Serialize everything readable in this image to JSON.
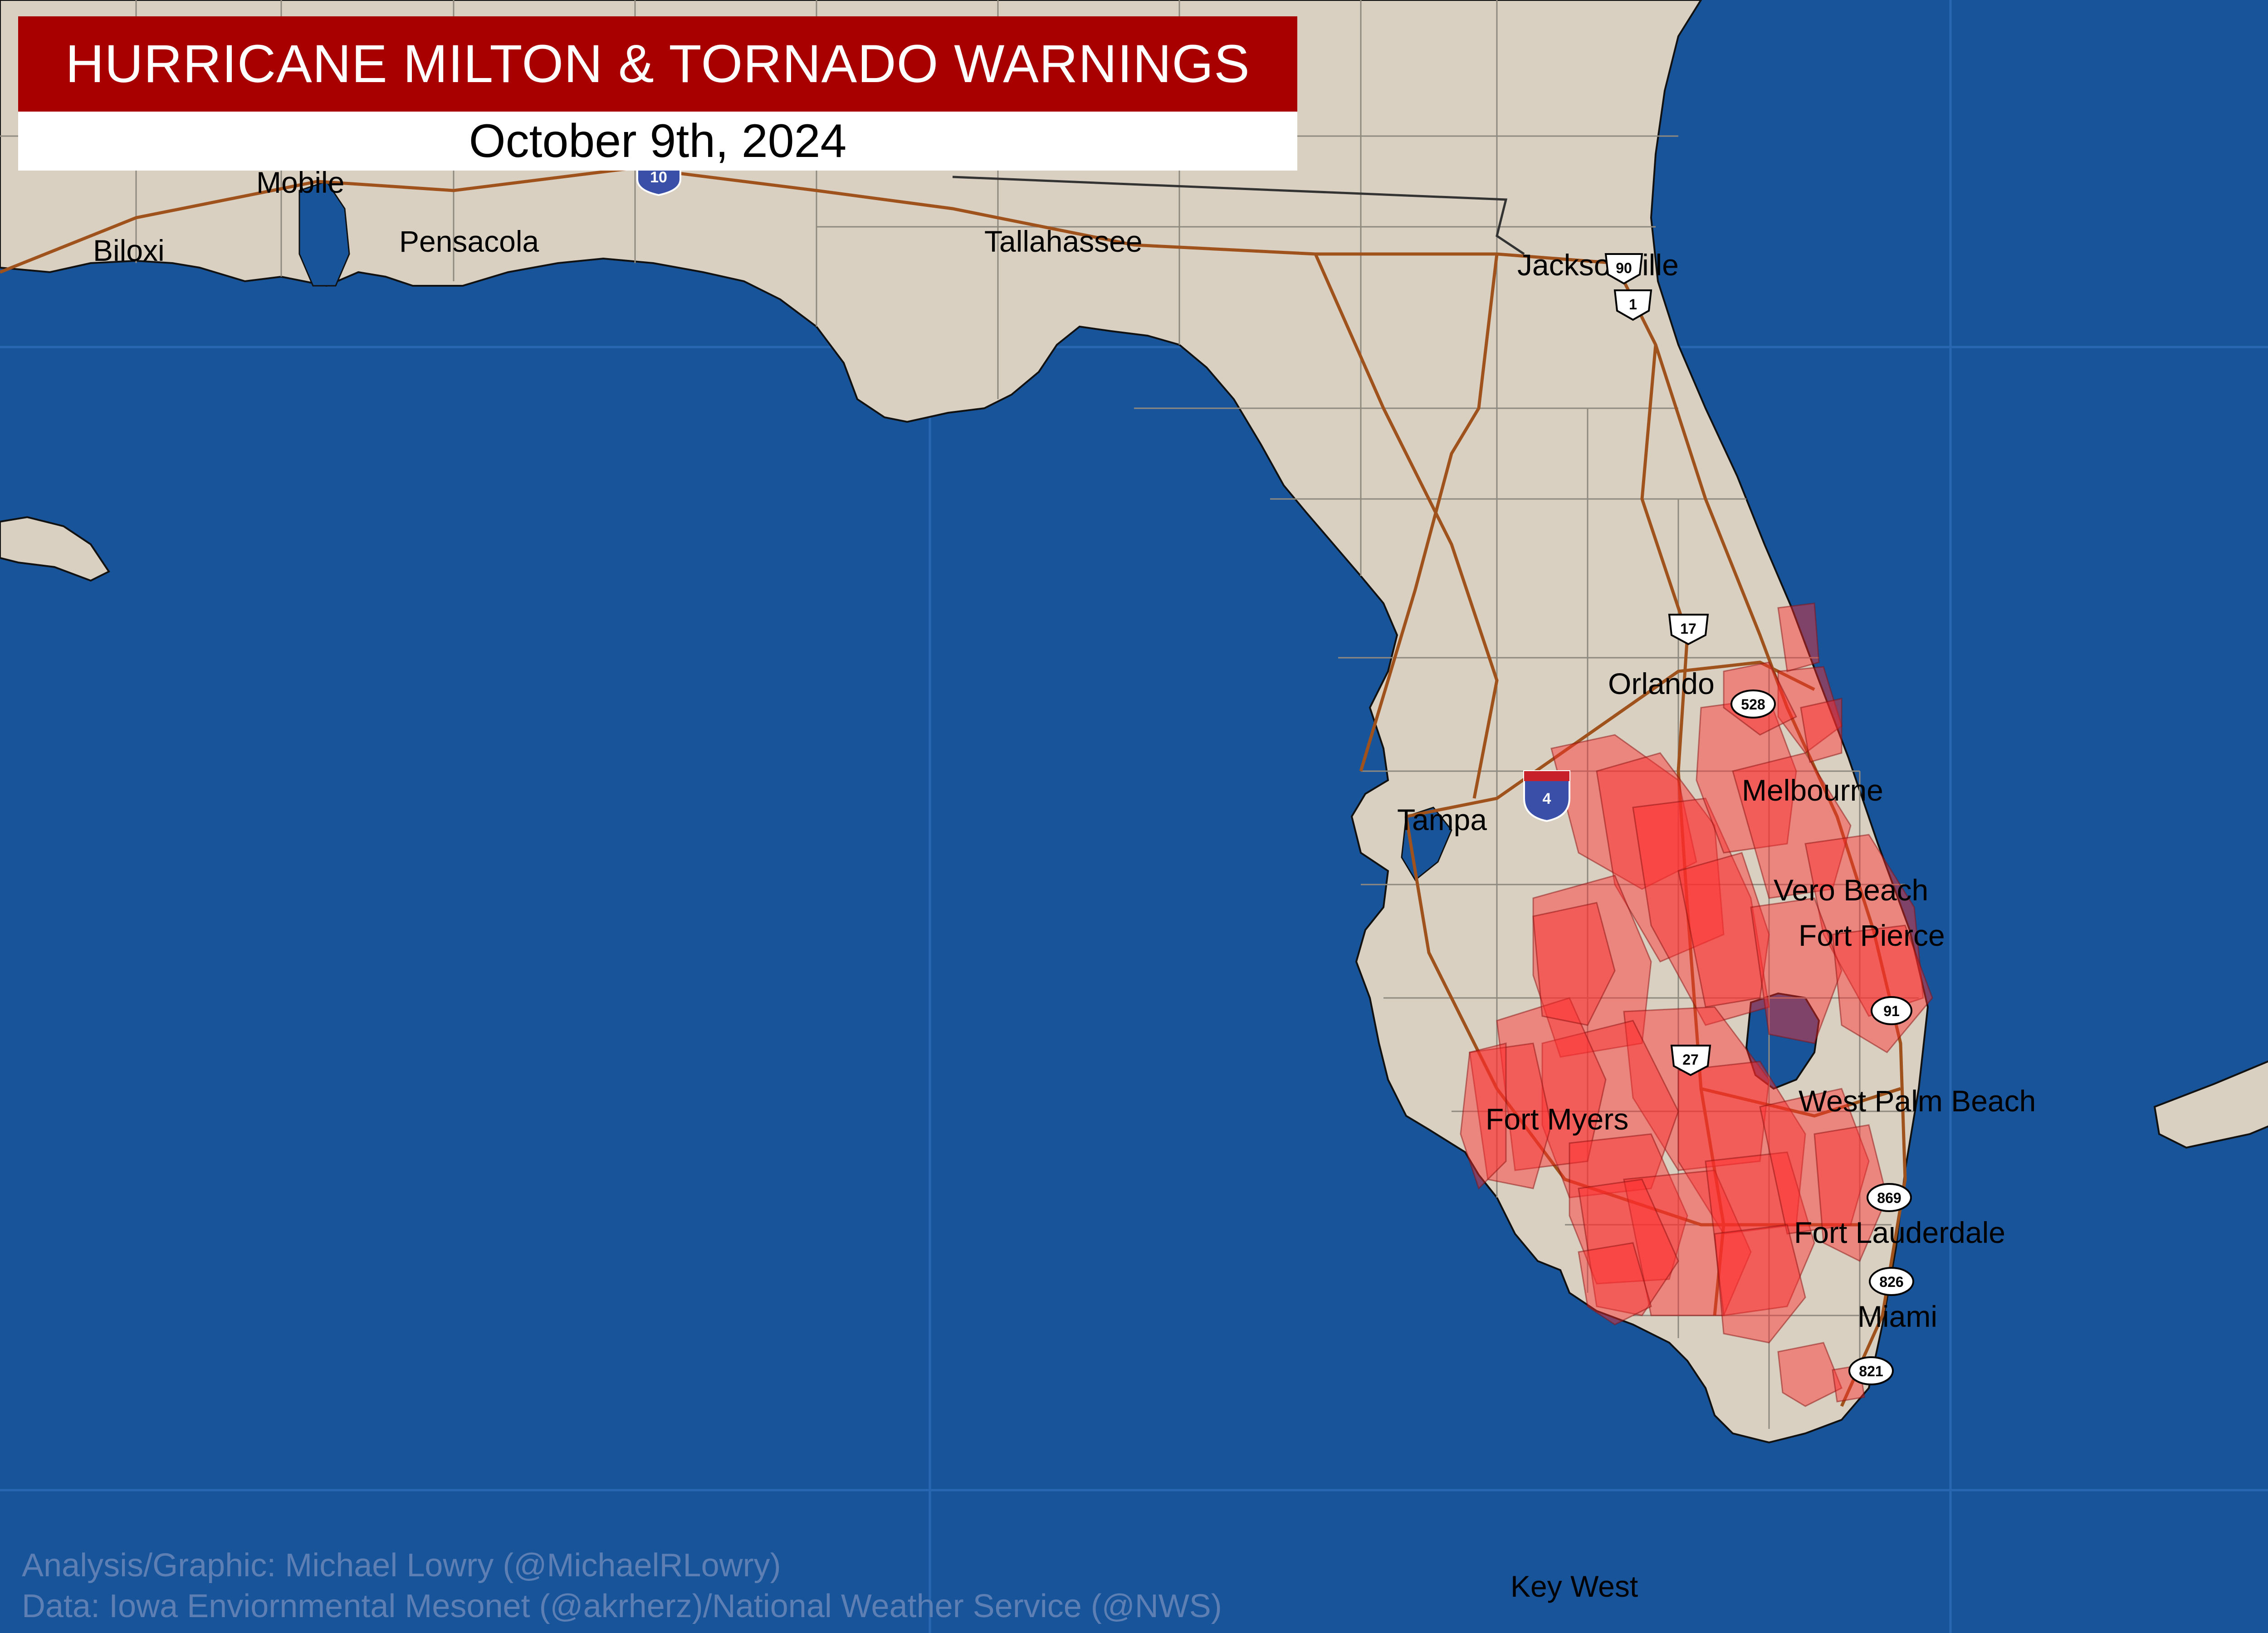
{
  "title": "HURRICANE MILTON & TORNADO WARNINGS",
  "date": "October 9th, 2024",
  "credits": {
    "analysis": "Analysis/Graphic: Michael Lowry (@MichaelRLowry)",
    "data": "Data: Iowa Enviornmental Mesonet (@akrherz)/National Weather Service (@NWS)"
  },
  "cities": {
    "mobile": "Mobile",
    "biloxi": "Biloxi",
    "pensacola": "Pensacola",
    "tallahassee": "Tallahassee",
    "jacksonville": "Jacksonville",
    "orlando": "Orlando",
    "melbourne": "Melbourne",
    "tampa": "Tampa",
    "vero_beach": "Vero Beach",
    "fort_pierce": "Fort Pierce",
    "west_palm_beach": "West Palm Beach",
    "fort_myers": "Fort Myers",
    "fort_lauderdale": "Fort Lauderdale",
    "miami": "Miami",
    "key_west": "Key West"
  },
  "highway_shields": {
    "i10": "10",
    "i4": "4",
    "us90": "90",
    "us1": "1",
    "us17": "17",
    "sr528": "528",
    "us27": "27",
    "sr91": "91",
    "sr869": "869",
    "sr826": "826",
    "sr821": "821"
  },
  "colors": {
    "water": "#17549a",
    "land": "#d9d0c1",
    "highway": "#a0521d",
    "warning_fill": "#ff2d2d",
    "title_bg": "#a80000",
    "credit_text": "#5d7fb4"
  }
}
